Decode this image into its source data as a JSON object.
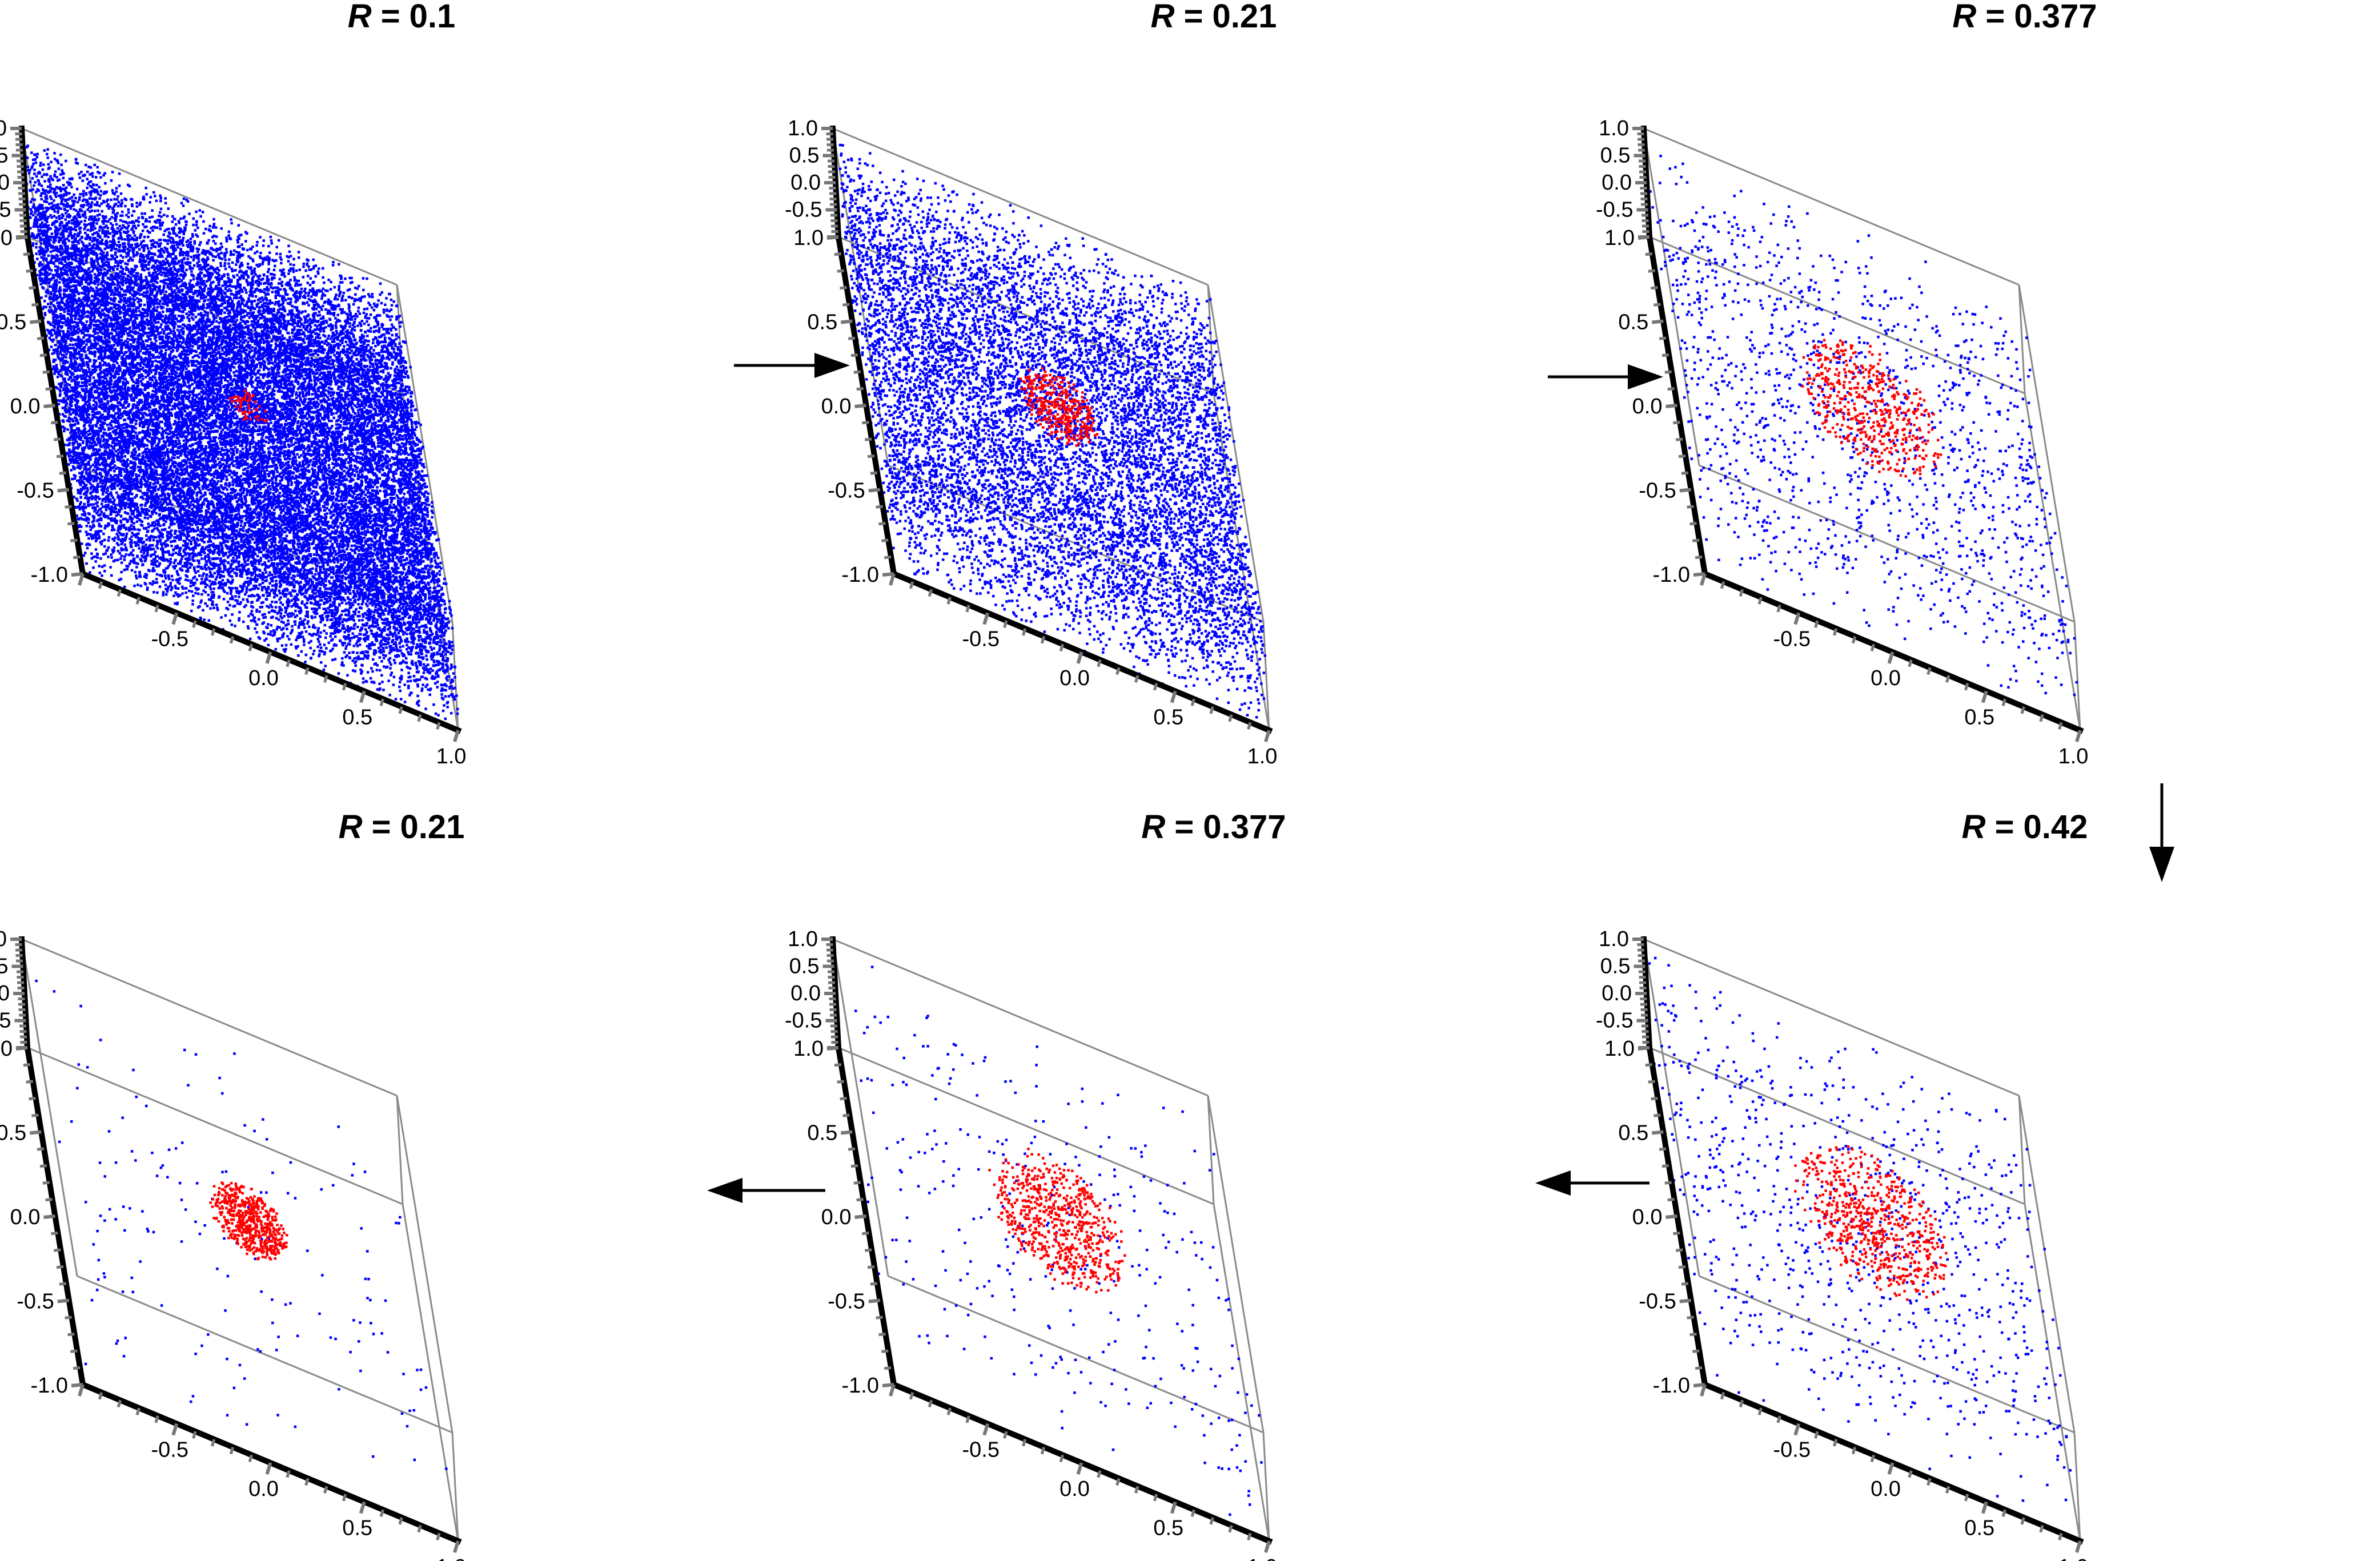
{
  "chart_data": [
    {
      "type": "scatter3d",
      "title": "R = 0.1",
      "title_var": "R",
      "title_value": "0.1",
      "axis_range": [
        -1.0,
        1.0
      ],
      "tick_labels": [
        "-1.0",
        "-0.5",
        "0.0",
        "0.5",
        "1.0"
      ],
      "series": [
        {
          "color": "#0000ff",
          "count": 26000,
          "distribution": "uniform-cube"
        },
        {
          "color": "#ff0000",
          "count": 60,
          "distribution": "ball",
          "center": [
            0.05,
            0.05,
            0.35
          ],
          "radius": 0.1
        }
      ]
    },
    {
      "type": "scatter3d",
      "title": "R = 0.21",
      "title_var": "R",
      "title_value": "0.21",
      "axis_range": [
        -1.0,
        1.0
      ],
      "tick_labels": [
        "-1.0",
        "-0.5",
        "0.0",
        "0.5",
        "1.0"
      ],
      "series": [
        {
          "color": "#0000ff",
          "count": 9500,
          "distribution": "uniform-cube"
        },
        {
          "color": "#ff0000",
          "count": 350,
          "distribution": "ball",
          "center": [
            0.05,
            0.05,
            0.35
          ],
          "radius": 0.21
        }
      ]
    },
    {
      "type": "scatter3d",
      "title": "R = 0.377",
      "title_var": "R",
      "title_value": "0.377",
      "axis_range": [
        -1.0,
        1.0
      ],
      "tick_labels": [
        "-1.0",
        "-0.5",
        "0.0",
        "0.5",
        "1.0"
      ],
      "series": [
        {
          "color": "#0000ff",
          "count": 1400,
          "distribution": "uniform-cube"
        },
        {
          "color": "#ff0000",
          "count": 500,
          "distribution": "ball",
          "center": [
            0.05,
            0.05,
            0.35
          ],
          "radius": 0.377
        }
      ]
    },
    {
      "type": "scatter3d",
      "title": "R = 0.42",
      "title_var": "R",
      "title_value": "0.42",
      "axis_range": [
        -1.0,
        1.0
      ],
      "tick_labels": [
        "-1.0",
        "-0.5",
        "0.0",
        "0.5",
        "1.0"
      ],
      "series": [
        {
          "color": "#0000ff",
          "count": 850,
          "distribution": "uniform-cube"
        },
        {
          "color": "#ff0000",
          "count": 650,
          "distribution": "ball",
          "center": [
            0.05,
            0.05,
            0.3
          ],
          "radius": 0.42
        }
      ]
    },
    {
      "type": "scatter3d",
      "title": "R = 0.377",
      "title_var": "R",
      "title_value": "0.377",
      "axis_range": [
        -1.0,
        1.0
      ],
      "tick_labels": [
        "-1.0",
        "-0.5",
        "0.0",
        "0.5",
        "1.0"
      ],
      "series": [
        {
          "color": "#0000ff",
          "count": 330,
          "distribution": "uniform-cube"
        },
        {
          "color": "#ff0000",
          "count": 650,
          "distribution": "ball",
          "center": [
            0.05,
            0.05,
            0.3
          ],
          "radius": 0.377
        }
      ]
    },
    {
      "type": "scatter3d",
      "title": "R = 0.21",
      "title_var": "R",
      "title_value": "0.21",
      "axis_range": [
        -1.0,
        1.0
      ],
      "tick_labels": [
        "-1.0",
        "-0.5",
        "0.0",
        "0.5",
        "1.0"
      ],
      "series": [
        {
          "color": "#0000ff",
          "count": 160,
          "distribution": "uniform-cube"
        },
        {
          "color": "#ff0000",
          "count": 550,
          "distribution": "ball",
          "center": [
            0.05,
            0.05,
            0.3
          ],
          "radius": 0.21
        }
      ]
    }
  ],
  "flow": [
    "right",
    "right",
    "down",
    "left",
    "left"
  ]
}
